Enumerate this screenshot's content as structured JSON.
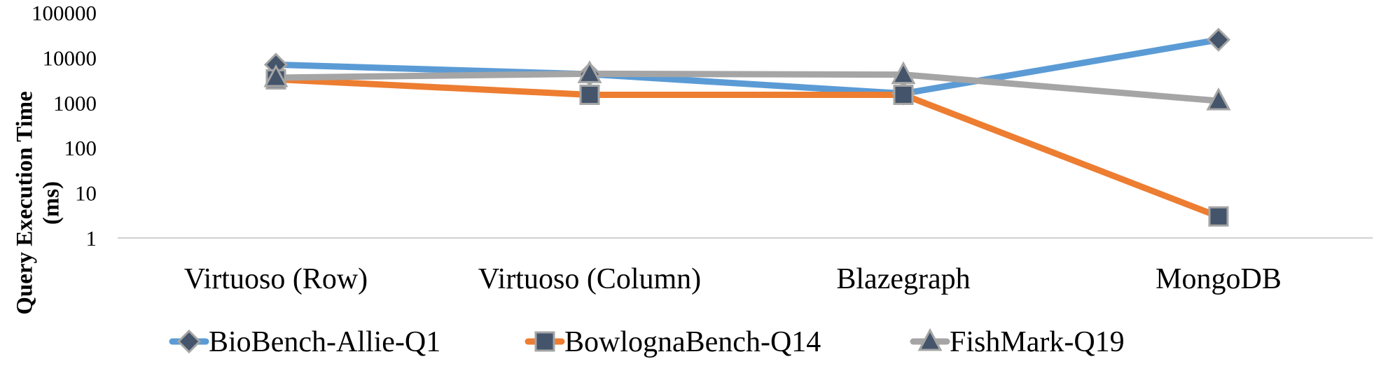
{
  "chart_data": {
    "type": "line",
    "title": "",
    "xlabel": "",
    "ylabel_lines": [
      "Query Execution Time",
      "(ms)"
    ],
    "y_scale": "log",
    "ylim": [
      1,
      100000
    ],
    "y_ticks": [
      {
        "value": 1,
        "label": "1"
      },
      {
        "value": 10,
        "label": "10"
      },
      {
        "value": 100,
        "label": "100"
      },
      {
        "value": 1000,
        "label": "1000"
      },
      {
        "value": 10000,
        "label": "10000"
      },
      {
        "value": 100000,
        "label": "100000"
      }
    ],
    "categories": [
      "Virtuoso (Row)",
      "Virtuoso (Column)",
      "Blazegraph",
      "MongoDB"
    ],
    "grid": false,
    "legend_position": "bottom",
    "series": [
      {
        "name": "BioBench-Allie-Q1",
        "color": "#5B9BD5",
        "marker": "diamond",
        "values": [
          7000,
          4300,
          1600,
          25000
        ]
      },
      {
        "name": "BowlognaBench-Q14",
        "color": "#ED7D31",
        "marker": "square",
        "values": [
          3300,
          1500,
          1500,
          3
        ]
      },
      {
        "name": "FishMark-Q19",
        "color": "#A5A5A5",
        "marker": "triangle",
        "values": [
          3600,
          4400,
          4200,
          1100
        ]
      }
    ],
    "marker_style": {
      "fill": "#44546A",
      "stroke": "#A5A5A5"
    }
  }
}
